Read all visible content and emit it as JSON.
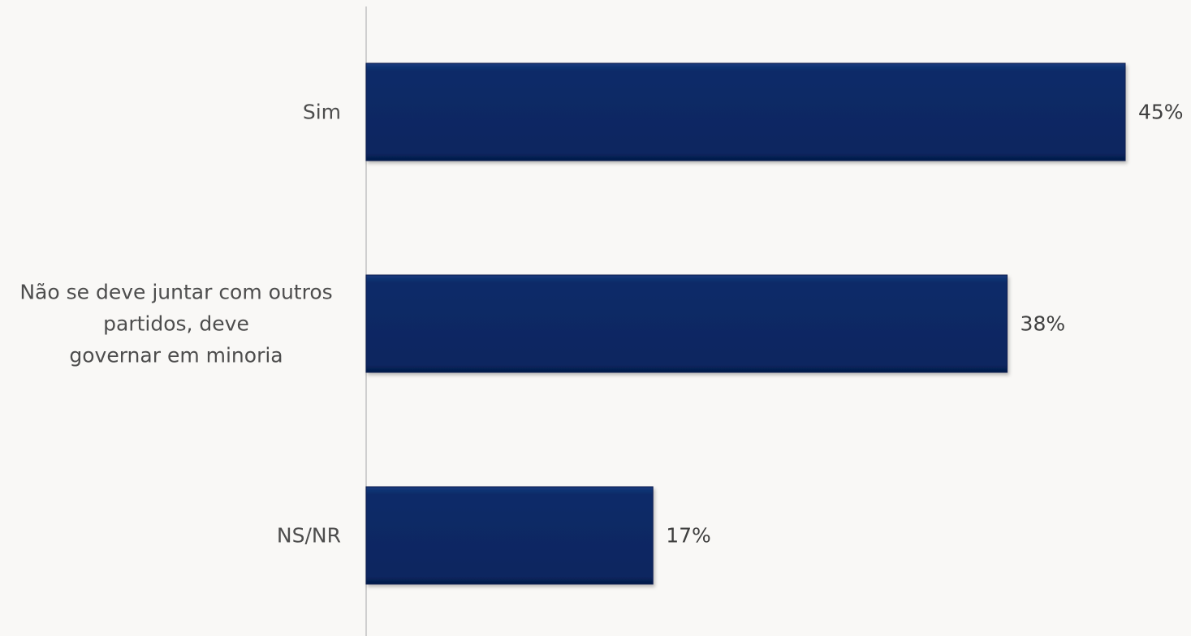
{
  "chart_data": {
    "type": "bar",
    "orientation": "horizontal",
    "categories": [
      "Sim",
      "Não se deve juntar com outros partidos, deve governar em minoria",
      "NS/NR"
    ],
    "category_label_lines": [
      [
        "Sim"
      ],
      [
        "Não se deve juntar com outros",
        "partidos, deve",
        "governar em minoria"
      ],
      [
        "NS/NR"
      ]
    ],
    "values": [
      45,
      38,
      17
    ],
    "value_labels": [
      "45%",
      "38%",
      "17%"
    ],
    "xlim": [
      0,
      45
    ],
    "grid": false,
    "legend": "none",
    "bar_color": "#0a2a66",
    "bar_border_color": "#0a1f4f"
  }
}
